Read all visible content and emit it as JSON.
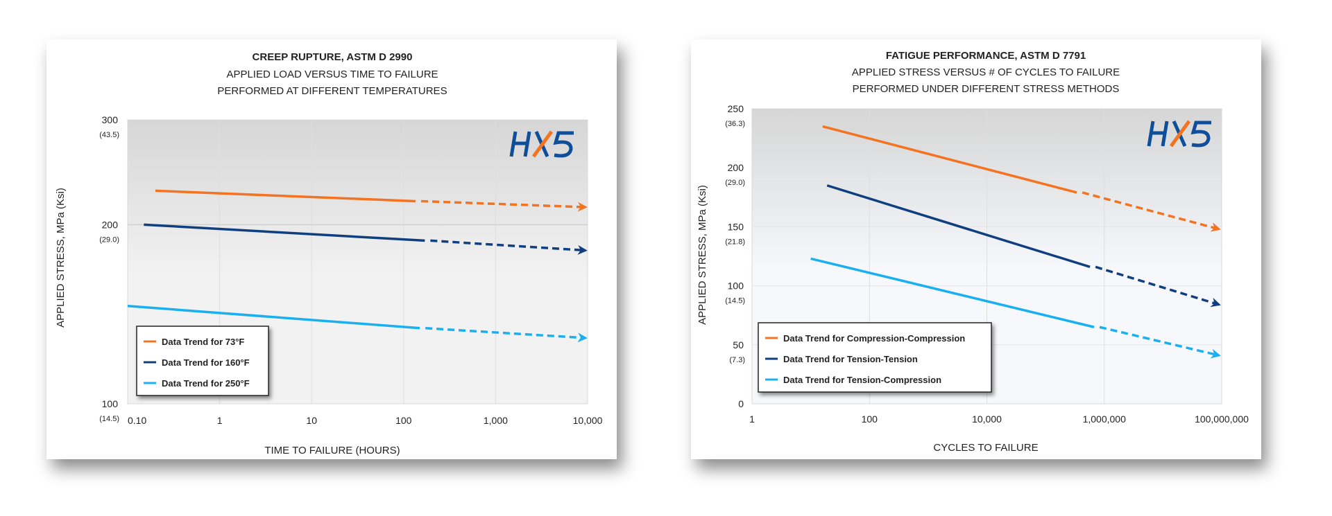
{
  "chart_data": [
    {
      "type": "line",
      "title": "CREEP RUPTURE, ASTM D 2990",
      "subtitle_lines": [
        "APPLIED LOAD VERSUS TIME TO FAILURE",
        "PERFORMED AT DIFFERENT TEMPERATURES"
      ],
      "xlabel": "TIME TO FAILURE (HOURS)",
      "ylabel": "APPLIED STRESS, MPa (Ksi)",
      "x_scale": "log",
      "y_scale": "log",
      "xlim": [
        0.1,
        10000
      ],
      "ylim": [
        100,
        300
      ],
      "x_ticks": [
        {
          "v": 0.1,
          "label": "0.10"
        },
        {
          "v": 1,
          "label": "1"
        },
        {
          "v": 10,
          "label": "10"
        },
        {
          "v": 100,
          "label": "100"
        },
        {
          "v": 1000,
          "label": "1,000"
        },
        {
          "v": 10000,
          "label": "10,000"
        }
      ],
      "y_ticks": [
        {
          "v": 300,
          "label": "300",
          "sub": "(43.5)"
        },
        {
          "v": 200,
          "label": "200",
          "sub": "(29.0)"
        },
        {
          "v": 100,
          "label": "100",
          "sub": "(14.5)"
        }
      ],
      "grid": {
        "x": true,
        "y": true
      },
      "legend_position": "bottom-left",
      "watermark": "HX5",
      "series": [
        {
          "name": "Data Trend for 73°F",
          "color": "#f47321",
          "solid": [
            [
              0.2,
              228
            ],
            [
              135,
              219
            ]
          ],
          "dashed_extrapolation": [
            [
              135,
              219
            ],
            [
              9500,
              214
            ]
          ]
        },
        {
          "name": "Data Trend for 160°F",
          "color": "#0f3f7f",
          "solid": [
            [
              0.15,
              200
            ],
            [
              170,
              188
            ]
          ],
          "dashed_extrapolation": [
            [
              170,
              188
            ],
            [
              9500,
              181
            ]
          ]
        },
        {
          "name": "Data Trend for 250°F",
          "color": "#1ab0ef",
          "solid": [
            [
              0.1,
              146
            ],
            [
              150,
              134
            ]
          ],
          "dashed_extrapolation": [
            [
              150,
              134
            ],
            [
              9500,
              129
            ]
          ]
        }
      ]
    },
    {
      "type": "line",
      "title": "FATIGUE PERFORMANCE, ASTM D 7791",
      "subtitle_lines": [
        "APPLIED STRESS VERSUS # OF CYCLES TO FAILURE",
        "PERFORMED UNDER DIFFERENT STRESS METHODS"
      ],
      "xlabel": "CYCLES TO FAILURE",
      "ylabel": "APPLIED STRESS, MPa (Ksi)",
      "x_scale": "log",
      "y_scale": "linear",
      "xlim": [
        1,
        100000000
      ],
      "ylim": [
        0,
        250
      ],
      "x_ticks": [
        {
          "v": 1,
          "label": "1"
        },
        {
          "v": 100,
          "label": "100"
        },
        {
          "v": 10000,
          "label": "10,000"
        },
        {
          "v": 1000000,
          "label": "1,000,000"
        },
        {
          "v": 100000000,
          "label": "100,000,000"
        }
      ],
      "y_ticks": [
        {
          "v": 250,
          "label": "250",
          "sub": "(36.3)"
        },
        {
          "v": 200,
          "label": "200",
          "sub": "(29.0)"
        },
        {
          "v": 150,
          "label": "150",
          "sub": "(21.8)"
        },
        {
          "v": 100,
          "label": "100",
          "sub": "(14.5)"
        },
        {
          "v": 50,
          "label": "50",
          "sub": "(7.3)"
        },
        {
          "v": 0,
          "label": "0",
          "sub": ""
        }
      ],
      "grid": {
        "x": true,
        "y": true
      },
      "legend_position": "bottom-left",
      "watermark": "HX5",
      "series": [
        {
          "name": "Data Trend for Compression-Compression",
          "color": "#f47321",
          "solid": [
            [
              16,
              235
            ],
            [
              340000,
              179
            ]
          ],
          "dashed_extrapolation": [
            [
              340000,
              179
            ],
            [
              90000000,
              148
            ]
          ]
        },
        {
          "name": "Data Trend for Tension-Tension",
          "color": "#0f3f7f",
          "solid": [
            [
              19,
              185
            ],
            [
              570000,
              116
            ]
          ],
          "dashed_extrapolation": [
            [
              570000,
              116
            ],
            [
              90000000,
              84
            ]
          ]
        },
        {
          "name": "Data Trend for Tension-Compression",
          "color": "#1ab0ef",
          "solid": [
            [
              10,
              123
            ],
            [
              670000,
              65
            ]
          ],
          "dashed_extrapolation": [
            [
              670000,
              65
            ],
            [
              90000000,
              41
            ]
          ]
        }
      ]
    }
  ]
}
